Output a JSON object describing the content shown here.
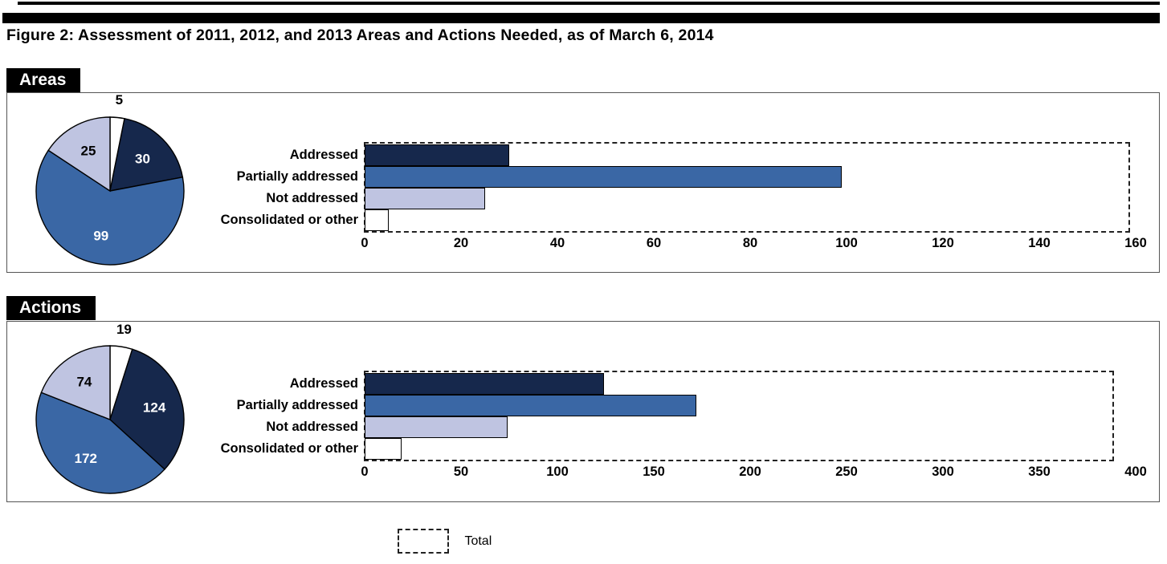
{
  "page": {
    "title": "Figure 2: Assessment of 2011, 2012, and 2013 Areas and Actions Needed, as of March 6, 2014"
  },
  "legend": {
    "label": "Total"
  },
  "palette": {
    "addressed": "#16284C",
    "partially_addressed": "#3A67A5",
    "not_addressed": "#BFC4E1",
    "consolidated_or_other": "#FFFFFF",
    "outline": "#000000",
    "dashed_outline": "#222222"
  },
  "chart_data": [
    {
      "type": "bar",
      "section_label": "Areas",
      "categories": [
        "Addressed",
        "Partially addressed",
        "Not addressed",
        "Consolidated or other"
      ],
      "values": [
        30,
        99,
        25,
        5
      ],
      "total": 159,
      "xlim": [
        0,
        160
      ],
      "ticks": [
        0,
        20,
        40,
        60,
        80,
        100,
        120,
        140,
        160
      ],
      "grid": false,
      "total_shown_as": "dashed rectangle spanning 0 to 159",
      "pie": {
        "type": "pie",
        "slices_clockwise_from_top": [
          {
            "label": "Consolidated or other",
            "value": 5
          },
          {
            "label": "Addressed",
            "value": 30
          },
          {
            "label": "Partially addressed",
            "value": 99
          },
          {
            "label": "Not addressed",
            "value": 25
          }
        ]
      }
    },
    {
      "type": "bar",
      "section_label": "Actions",
      "categories": [
        "Addressed",
        "Partially addressed",
        "Not addressed",
        "Consolidated or other"
      ],
      "values": [
        124,
        172,
        74,
        19
      ],
      "total": 389,
      "xlim": [
        0,
        400
      ],
      "ticks": [
        0,
        50,
        100,
        150,
        200,
        250,
        300,
        350,
        400
      ],
      "grid": false,
      "total_shown_as": "dashed rectangle spanning 0 to 389",
      "pie": {
        "type": "pie",
        "slices_clockwise_from_top": [
          {
            "label": "Consolidated or other",
            "value": 19
          },
          {
            "label": "Addressed",
            "value": 124
          },
          {
            "label": "Partially addressed",
            "value": 172
          },
          {
            "label": "Not addressed",
            "value": 74
          }
        ]
      }
    }
  ]
}
